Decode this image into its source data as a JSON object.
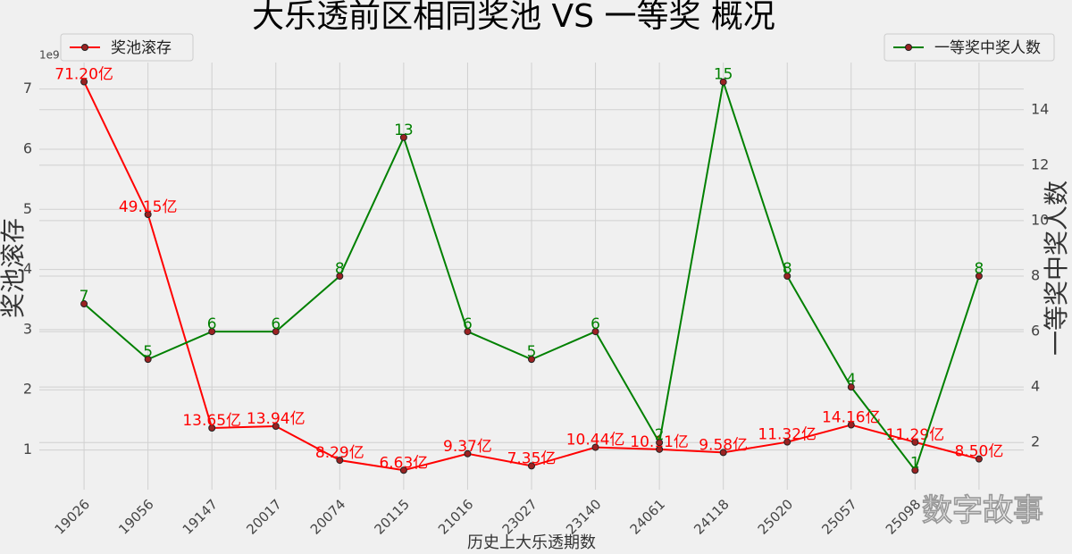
{
  "chart_data": {
    "type": "line",
    "title": "大乐透前区相同奖池 VS 一等奖 概况",
    "x_label": "历史上大乐透期数",
    "y_label": "奖池滚存",
    "y2_label": "一等奖中奖人数",
    "y_offset_label": "1e9",
    "watermark": "数字故事",
    "categories": [
      "19026",
      "19056",
      "19147",
      "20017",
      "20074",
      "20115",
      "21016",
      "23027",
      "23140",
      "24061",
      "24118",
      "25020",
      "25057",
      "25098",
      null
    ],
    "series": [
      {
        "name": "奖池滚存",
        "color": "#ff0000",
        "legend_loc": "upper left",
        "values": [
          7.12,
          4.915,
          1.365,
          1.394,
          0.829,
          0.663,
          0.937,
          0.735,
          1.044,
          1.011,
          0.958,
          1.132,
          1.416,
          1.129,
          0.85
        ],
        "value_labels": [
          "71.20亿",
          "49.15亿",
          "13.65亿",
          "13.94亿",
          "8.29亿",
          "6.63亿",
          "9.37亿",
          "7.35亿",
          "10.44亿",
          "10.11亿",
          "9.58亿",
          "11.32亿",
          "14.16亿",
          "11.29亿",
          "8.50亿"
        ]
      },
      {
        "name": "一等奖中奖人数",
        "color": "#008000",
        "axis": "y2",
        "legend_loc": "upper right",
        "values": [
          7,
          5,
          6,
          6,
          8,
          13,
          6,
          5,
          6,
          2,
          15,
          8,
          4,
          1,
          8
        ]
      }
    ],
    "ylim": [
      0.34,
      7.44
    ],
    "yticks": [
      1,
      2,
      3,
      4,
      5,
      6,
      7
    ],
    "y2lim": [
      0.3,
      15.7
    ],
    "y2ticks": [
      2,
      4,
      6,
      8,
      10,
      12,
      14
    ],
    "grid": true
  }
}
